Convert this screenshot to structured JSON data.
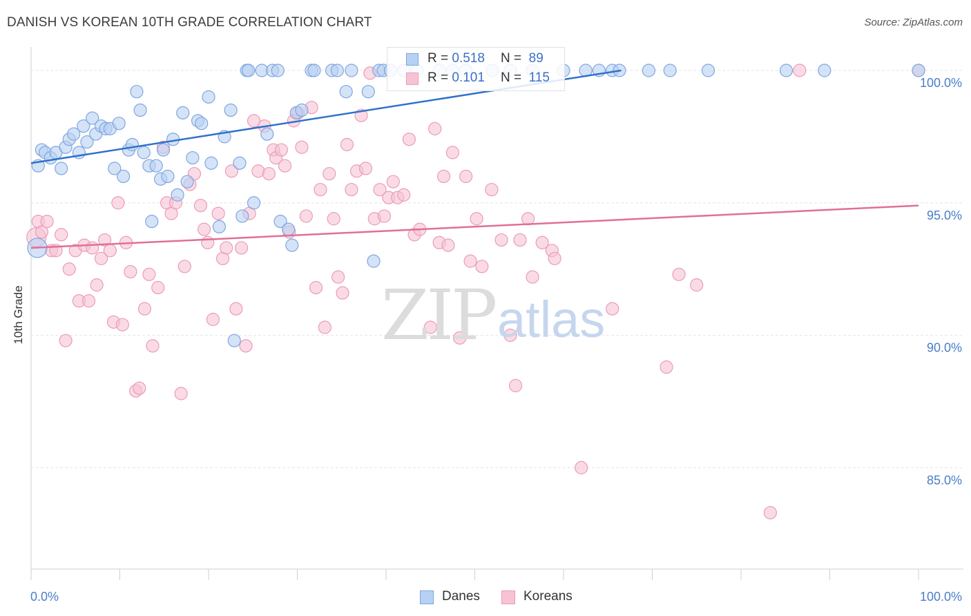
{
  "title": "DANISH VS KOREAN 10TH GRADE CORRELATION CHART",
  "source": "Source: ZipAtlas.com",
  "watermark": {
    "zip": "ZIP",
    "atlas": "atlas"
  },
  "legend": {
    "rows": [
      {
        "r_label": "R = ",
        "r_value": "0.518",
        "n_label": "N = ",
        "n_value": "89"
      },
      {
        "r_label": "R = ",
        "r_value": "0.101",
        "n_label": "N = ",
        "n_value": "115"
      }
    ]
  },
  "bottom_legend": [
    "Danes",
    "Koreans"
  ],
  "colors": {
    "danes_fill": "#b7d1f4",
    "danes_stroke": "#7ea6dd",
    "danes_line": "#2f72c9",
    "koreans_fill": "#f7c3d4",
    "koreans_stroke": "#eb9bb7",
    "koreans_line": "#e06f98",
    "tick_label": "#4a7dc9",
    "grid": "#e6e6e6"
  },
  "chart_data": {
    "type": "scatter",
    "title": "DANISH VS KOREAN 10TH GRADE CORRELATION CHART",
    "xlabel": "",
    "ylabel": "10th Grade",
    "xlim": [
      0,
      100
    ],
    "ylim": [
      80.6,
      100.6
    ],
    "x_tick_labels": [
      "0.0%",
      "100.0%"
    ],
    "y_ticks": [
      85,
      90,
      95,
      100
    ],
    "y_tick_labels": [
      "85.0%",
      "90.0%",
      "95.0%",
      "100.0%"
    ],
    "grid": true,
    "legend_position": "top-center",
    "series": [
      {
        "name": "Danes",
        "R": 0.518,
        "N": 89,
        "trend": {
          "x": [
            0,
            66.5
          ],
          "y": [
            96.5,
            100.0
          ]
        },
        "points": [
          [
            0.7,
            93.3
          ],
          [
            0.8,
            96.4
          ],
          [
            1.2,
            97.0
          ],
          [
            1.6,
            96.9
          ],
          [
            2.2,
            96.7
          ],
          [
            2.8,
            96.9
          ],
          [
            3.4,
            96.3
          ],
          [
            3.9,
            97.1
          ],
          [
            4.3,
            97.4
          ],
          [
            4.8,
            97.6
          ],
          [
            5.4,
            96.9
          ],
          [
            5.9,
            97.9
          ],
          [
            6.3,
            97.3
          ],
          [
            6.9,
            98.2
          ],
          [
            7.3,
            97.6
          ],
          [
            7.9,
            97.9
          ],
          [
            8.4,
            97.8
          ],
          [
            8.9,
            97.8
          ],
          [
            9.4,
            96.3
          ],
          [
            9.9,
            98.0
          ],
          [
            10.4,
            96.0
          ],
          [
            11.0,
            97.0
          ],
          [
            11.4,
            97.2
          ],
          [
            11.9,
            99.2
          ],
          [
            12.3,
            98.5
          ],
          [
            12.7,
            96.9
          ],
          [
            13.3,
            96.4
          ],
          [
            13.6,
            94.3
          ],
          [
            14.1,
            96.4
          ],
          [
            14.6,
            95.9
          ],
          [
            14.9,
            97.0
          ],
          [
            15.4,
            96.0
          ],
          [
            16.0,
            97.4
          ],
          [
            16.5,
            95.3
          ],
          [
            17.1,
            98.4
          ],
          [
            17.6,
            95.8
          ],
          [
            18.2,
            96.7
          ],
          [
            18.8,
            98.1
          ],
          [
            19.2,
            98.0
          ],
          [
            20.0,
            99.0
          ],
          [
            20.3,
            96.5
          ],
          [
            21.2,
            94.1
          ],
          [
            21.8,
            97.5
          ],
          [
            22.5,
            98.5
          ],
          [
            22.9,
            89.8
          ],
          [
            23.5,
            96.5
          ],
          [
            23.8,
            94.5
          ],
          [
            24.3,
            100.0
          ],
          [
            24.5,
            100.0
          ],
          [
            25.1,
            95.0
          ],
          [
            26.0,
            100.0
          ],
          [
            26.6,
            97.6
          ],
          [
            27.2,
            100.0
          ],
          [
            27.8,
            100.0
          ],
          [
            28.1,
            94.3
          ],
          [
            29.0,
            94.0
          ],
          [
            29.4,
            93.4
          ],
          [
            29.9,
            98.4
          ],
          [
            30.5,
            98.5
          ],
          [
            31.6,
            100.0
          ],
          [
            31.9,
            100.0
          ],
          [
            33.9,
            100.0
          ],
          [
            34.5,
            100.0
          ],
          [
            35.5,
            99.2
          ],
          [
            36.1,
            100.0
          ],
          [
            38.0,
            99.2
          ],
          [
            38.6,
            92.8
          ],
          [
            39.2,
            100.0
          ],
          [
            39.7,
            100.0
          ],
          [
            40.5,
            100.0
          ],
          [
            42.0,
            100.0
          ],
          [
            43.5,
            100.0
          ],
          [
            46.0,
            100.0
          ],
          [
            47.5,
            100.0
          ],
          [
            49.0,
            100.0
          ],
          [
            52.0,
            100.0
          ],
          [
            54.0,
            100.0
          ],
          [
            56.5,
            100.0
          ],
          [
            60.0,
            100.0
          ],
          [
            62.5,
            100.0
          ],
          [
            64.0,
            100.0
          ],
          [
            65.5,
            100.0
          ],
          [
            66.3,
            100.0
          ],
          [
            69.6,
            100.0
          ],
          [
            72.0,
            100.0
          ],
          [
            76.3,
            100.0
          ],
          [
            85.1,
            100.0
          ],
          [
            89.4,
            100.0
          ],
          [
            100.0,
            100.0
          ]
        ]
      },
      {
        "name": "Koreans",
        "R": 0.101,
        "N": 115,
        "trend": {
          "x": [
            0,
            100
          ],
          "y": [
            93.3,
            94.9
          ]
        },
        "points": [
          [
            0.6,
            93.7
          ],
          [
            0.8,
            94.3
          ],
          [
            1.2,
            93.9
          ],
          [
            1.8,
            94.3
          ],
          [
            2.3,
            93.2
          ],
          [
            2.8,
            93.2
          ],
          [
            3.4,
            93.8
          ],
          [
            3.9,
            89.8
          ],
          [
            4.3,
            92.5
          ],
          [
            5.0,
            93.2
          ],
          [
            5.4,
            91.3
          ],
          [
            6.0,
            93.4
          ],
          [
            6.5,
            91.3
          ],
          [
            6.9,
            93.3
          ],
          [
            7.4,
            91.9
          ],
          [
            7.9,
            92.9
          ],
          [
            8.3,
            93.6
          ],
          [
            8.9,
            93.2
          ],
          [
            9.3,
            90.5
          ],
          [
            9.8,
            95.0
          ],
          [
            10.3,
            90.4
          ],
          [
            10.7,
            93.5
          ],
          [
            11.2,
            92.4
          ],
          [
            11.8,
            87.9
          ],
          [
            12.2,
            88.0
          ],
          [
            12.8,
            91.0
          ],
          [
            13.3,
            92.3
          ],
          [
            13.7,
            89.6
          ],
          [
            14.3,
            91.8
          ],
          [
            14.9,
            97.1
          ],
          [
            15.3,
            95.0
          ],
          [
            15.8,
            94.6
          ],
          [
            16.3,
            95.0
          ],
          [
            16.9,
            87.8
          ],
          [
            17.3,
            92.6
          ],
          [
            17.9,
            95.7
          ],
          [
            18.4,
            96.1
          ],
          [
            19.1,
            94.9
          ],
          [
            19.5,
            94.0
          ],
          [
            19.9,
            93.5
          ],
          [
            20.5,
            90.6
          ],
          [
            21.1,
            94.6
          ],
          [
            21.6,
            92.9
          ],
          [
            22.0,
            93.3
          ],
          [
            22.6,
            96.2
          ],
          [
            23.1,
            91.0
          ],
          [
            23.7,
            93.3
          ],
          [
            24.2,
            89.6
          ],
          [
            24.6,
            94.6
          ],
          [
            25.1,
            98.1
          ],
          [
            25.6,
            96.2
          ],
          [
            26.3,
            97.9
          ],
          [
            26.8,
            96.1
          ],
          [
            27.3,
            97.0
          ],
          [
            27.6,
            96.7
          ],
          [
            28.2,
            97.0
          ],
          [
            28.6,
            96.4
          ],
          [
            29.1,
            93.9
          ],
          [
            29.6,
            98.1
          ],
          [
            30.1,
            98.4
          ],
          [
            30.5,
            97.1
          ],
          [
            31.0,
            94.5
          ],
          [
            31.6,
            98.6
          ],
          [
            32.1,
            91.8
          ],
          [
            32.6,
            95.5
          ],
          [
            33.1,
            90.3
          ],
          [
            33.6,
            96.1
          ],
          [
            34.1,
            94.4
          ],
          [
            34.6,
            92.2
          ],
          [
            35.1,
            91.6
          ],
          [
            35.6,
            97.2
          ],
          [
            36.1,
            95.5
          ],
          [
            36.7,
            96.2
          ],
          [
            37.2,
            98.3
          ],
          [
            37.7,
            96.3
          ],
          [
            38.2,
            99.9
          ],
          [
            38.7,
            94.4
          ],
          [
            39.3,
            95.5
          ],
          [
            39.8,
            94.5
          ],
          [
            40.3,
            95.2
          ],
          [
            40.8,
            95.8
          ],
          [
            41.3,
            95.2
          ],
          [
            42.0,
            95.3
          ],
          [
            42.6,
            97.4
          ],
          [
            43.2,
            93.8
          ],
          [
            43.8,
            94.0
          ],
          [
            45.0,
            90.3
          ],
          [
            45.5,
            97.8
          ],
          [
            46.0,
            93.5
          ],
          [
            46.5,
            96.0
          ],
          [
            47.0,
            93.4
          ],
          [
            47.5,
            96.9
          ],
          [
            48.3,
            89.9
          ],
          [
            49.0,
            96.0
          ],
          [
            49.5,
            92.8
          ],
          [
            50.2,
            94.4
          ],
          [
            50.8,
            92.6
          ],
          [
            51.9,
            95.5
          ],
          [
            53.0,
            93.6
          ],
          [
            54.0,
            90.0
          ],
          [
            54.6,
            88.1
          ],
          [
            55.1,
            93.6
          ],
          [
            56.0,
            94.4
          ],
          [
            56.5,
            92.2
          ],
          [
            57.6,
            93.5
          ],
          [
            58.7,
            93.2
          ],
          [
            59.0,
            92.9
          ],
          [
            62.0,
            85.0
          ],
          [
            65.5,
            91.0
          ],
          [
            71.6,
            88.8
          ],
          [
            73.0,
            92.3
          ],
          [
            75.0,
            91.9
          ],
          [
            83.3,
            83.3
          ],
          [
            86.6,
            100.0
          ],
          [
            100.0,
            100.0
          ]
        ]
      }
    ]
  }
}
